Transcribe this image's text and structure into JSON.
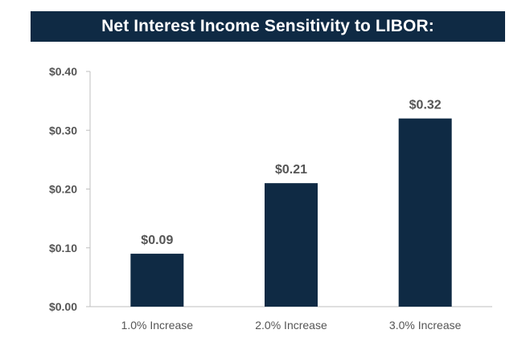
{
  "chart_data": {
    "type": "bar",
    "title": "Net Interest Income Sensitivity to LIBOR:",
    "categories": [
      "1.0% Increase",
      "2.0% Increase",
      "3.0% Increase"
    ],
    "values": [
      0.09,
      0.21,
      0.32
    ],
    "data_labels": [
      "$0.09",
      "$0.21",
      "$0.32"
    ],
    "yticks": [
      0.0,
      0.1,
      0.2,
      0.3,
      0.4
    ],
    "ytick_labels": [
      "$0.00",
      "$0.10",
      "$0.20",
      "$0.30",
      "$0.40"
    ],
    "ylim": [
      0,
      0.4
    ],
    "xlabel": "",
    "ylabel": "",
    "grid": false,
    "legend": "none",
    "colors": {
      "bar": "#0f2a44",
      "banner": "#0f2a44",
      "title_text": "#ffffff",
      "axis": "#bfbfbf",
      "labels": "#555555"
    }
  }
}
